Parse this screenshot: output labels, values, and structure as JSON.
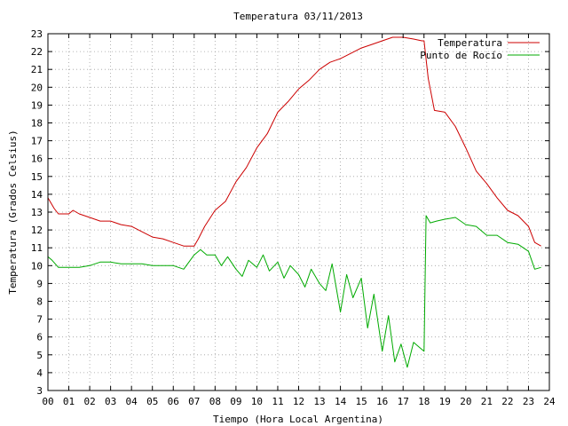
{
  "chart_data": {
    "type": "line",
    "title": "Temperatura 03/11/2013",
    "xlabel": "Tiempo (Hora Local Argentina)",
    "ylabel": "Temperatura (Grados Celsius)",
    "xlim": [
      0,
      24
    ],
    "ylim": [
      3,
      23
    ],
    "xticks": [
      "00",
      "01",
      "02",
      "03",
      "04",
      "05",
      "06",
      "07",
      "08",
      "09",
      "10",
      "11",
      "12",
      "13",
      "14",
      "15",
      "16",
      "17",
      "18",
      "19",
      "20",
      "21",
      "22",
      "23",
      "24"
    ],
    "yticks": [
      "3",
      "4",
      "5",
      "6",
      "7",
      "8",
      "9",
      "10",
      "11",
      "12",
      "13",
      "14",
      "15",
      "16",
      "17",
      "18",
      "19",
      "20",
      "21",
      "22",
      "23"
    ],
    "grid": true,
    "legend": "top-right",
    "series": [
      {
        "name": "Temperatura",
        "color": "#cc0000",
        "x": [
          0,
          0.3,
          0.5,
          1.0,
          1.2,
          1.5,
          2.0,
          2.5,
          3.0,
          3.5,
          4.0,
          4.5,
          5.0,
          5.5,
          6.0,
          6.5,
          7.0,
          7.2,
          7.5,
          8.0,
          8.5,
          9.0,
          9.5,
          10.0,
          10.5,
          11.0,
          11.5,
          12.0,
          12.5,
          13.0,
          13.5,
          14.0,
          14.5,
          15.0,
          15.5,
          16.0,
          16.5,
          17.0,
          17.5,
          17.9,
          18.0,
          18.2,
          18.5,
          19.0,
          19.5,
          20.0,
          20.5,
          21.0,
          21.5,
          22.0,
          22.5,
          23.0,
          23.3,
          23.6
        ],
        "y": [
          13.8,
          13.2,
          12.9,
          12.9,
          13.1,
          12.9,
          12.7,
          12.5,
          12.5,
          12.3,
          12.2,
          11.9,
          11.6,
          11.5,
          11.3,
          11.1,
          11.1,
          11.5,
          12.2,
          13.1,
          13.6,
          14.7,
          15.5,
          16.6,
          17.4,
          18.6,
          19.2,
          19.9,
          20.4,
          21.0,
          21.4,
          21.6,
          21.9,
          22.2,
          22.4,
          22.6,
          22.8,
          22.8,
          22.7,
          22.6,
          22.6,
          20.5,
          18.7,
          18.6,
          17.8,
          16.6,
          15.3,
          14.6,
          13.8,
          13.1,
          12.8,
          12.2,
          11.3,
          11.1
        ]
      },
      {
        "name": "Punto de Rocío",
        "color": "#00aa00",
        "x": [
          0,
          0.2,
          0.5,
          1.0,
          1.5,
          2.0,
          2.5,
          3.0,
          3.5,
          4.0,
          4.5,
          5.0,
          5.5,
          6.0,
          6.5,
          7.0,
          7.3,
          7.6,
          8.0,
          8.3,
          8.6,
          9.0,
          9.3,
          9.6,
          10.0,
          10.3,
          10.6,
          11.0,
          11.3,
          11.6,
          12.0,
          12.3,
          12.6,
          13.0,
          13.3,
          13.6,
          14.0,
          14.3,
          14.6,
          15.0,
          15.3,
          15.6,
          16.0,
          16.3,
          16.6,
          16.9,
          17.2,
          17.5,
          17.8,
          18.0,
          18.1,
          18.3,
          18.6,
          19.0,
          19.5,
          20.0,
          20.5,
          21.0,
          21.5,
          22.0,
          22.5,
          23.0,
          23.3,
          23.6
        ],
        "y": [
          10.5,
          10.3,
          9.9,
          9.9,
          9.9,
          10.0,
          10.2,
          10.2,
          10.1,
          10.1,
          10.1,
          10.0,
          10.0,
          10.0,
          9.8,
          10.6,
          10.9,
          10.6,
          10.6,
          10.0,
          10.5,
          9.8,
          9.4,
          10.3,
          9.9,
          10.6,
          9.7,
          10.2,
          9.3,
          10.0,
          9.5,
          8.8,
          9.8,
          9.0,
          8.6,
          10.1,
          7.4,
          9.5,
          8.2,
          9.3,
          6.5,
          8.4,
          5.2,
          7.2,
          4.6,
          5.6,
          4.3,
          5.7,
          5.4,
          5.2,
          12.8,
          12.4,
          12.5,
          12.6,
          12.7,
          12.3,
          12.2,
          11.7,
          11.7,
          11.3,
          11.2,
          10.8,
          9.8,
          9.9
        ]
      }
    ]
  }
}
